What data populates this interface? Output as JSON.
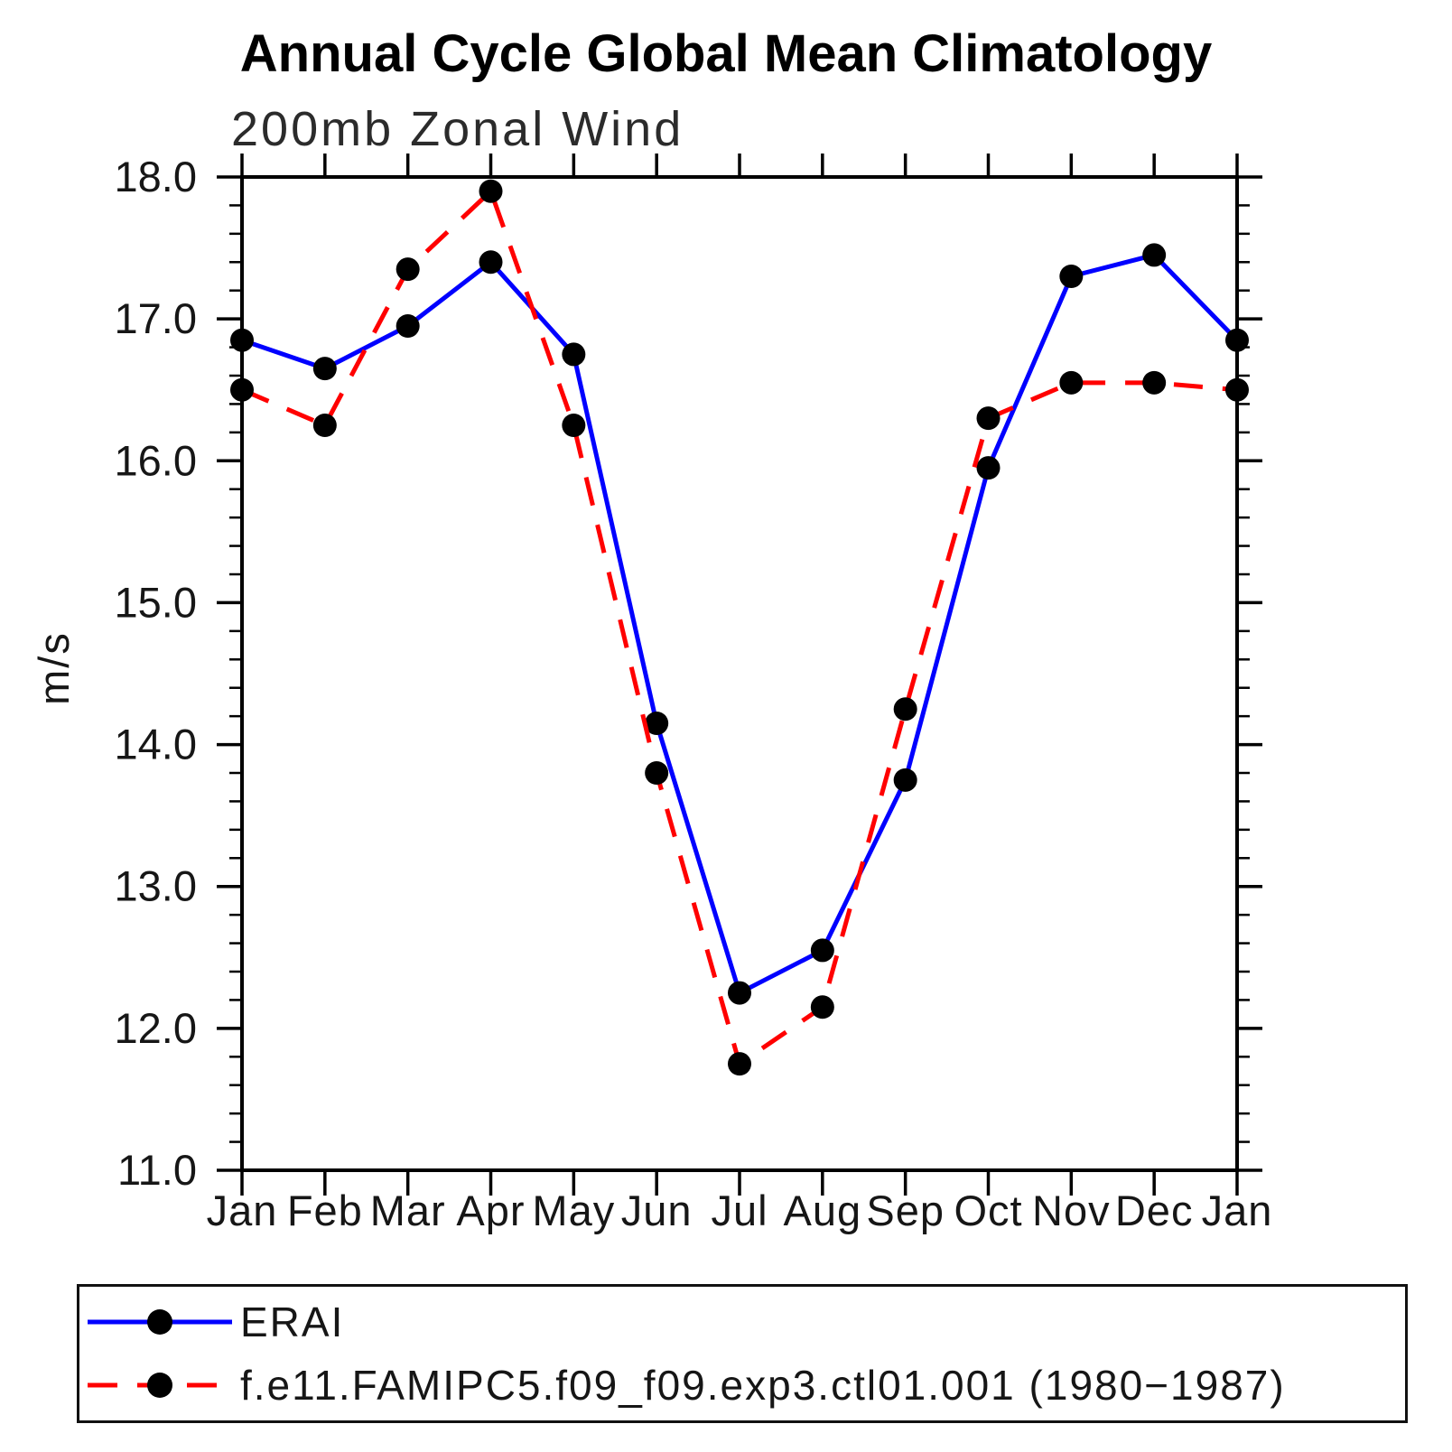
{
  "chart_data": {
    "type": "line",
    "title": "Annual Cycle Global Mean Climatology",
    "subtitle": "200mb Zonal Wind",
    "ylabel": "m/s",
    "ylim": [
      11.0,
      18.0
    ],
    "ytick_values": [
      11,
      12,
      13,
      14,
      15,
      16,
      17,
      18
    ],
    "ytick_labels": [
      "11.0",
      "12.0",
      "13.0",
      "14.0",
      "15.0",
      "16.0",
      "17.0",
      "18.0"
    ],
    "minor_tick_step": 0.2,
    "grid": false,
    "legend_position": "bottom",
    "axis_color": "#000000",
    "categories": [
      "Jan",
      "Feb",
      "Mar",
      "Apr",
      "May",
      "Jun",
      "Jul",
      "Aug",
      "Sep",
      "Oct",
      "Nov",
      "Dec",
      "Jan"
    ],
    "series": [
      {
        "name": "ERAI",
        "color": "#0000ff",
        "line_style": "solid",
        "marker": "filled-circle",
        "marker_color": "#000000",
        "values": [
          16.85,
          16.65,
          16.95,
          17.4,
          16.75,
          14.15,
          12.25,
          12.55,
          13.75,
          15.95,
          17.3,
          17.45,
          16.85
        ]
      },
      {
        "name": "f.e11.FAMIPC5.f09_f09.exp3.ctl01.001 (1980−1987)",
        "color": "#ff0000",
        "line_style": "dashed",
        "marker": "filled-circle",
        "marker_color": "#000000",
        "values": [
          16.5,
          16.25,
          17.35,
          17.9,
          16.25,
          13.8,
          11.75,
          12.15,
          14.25,
          16.3,
          16.55,
          16.55,
          16.5
        ]
      }
    ]
  }
}
